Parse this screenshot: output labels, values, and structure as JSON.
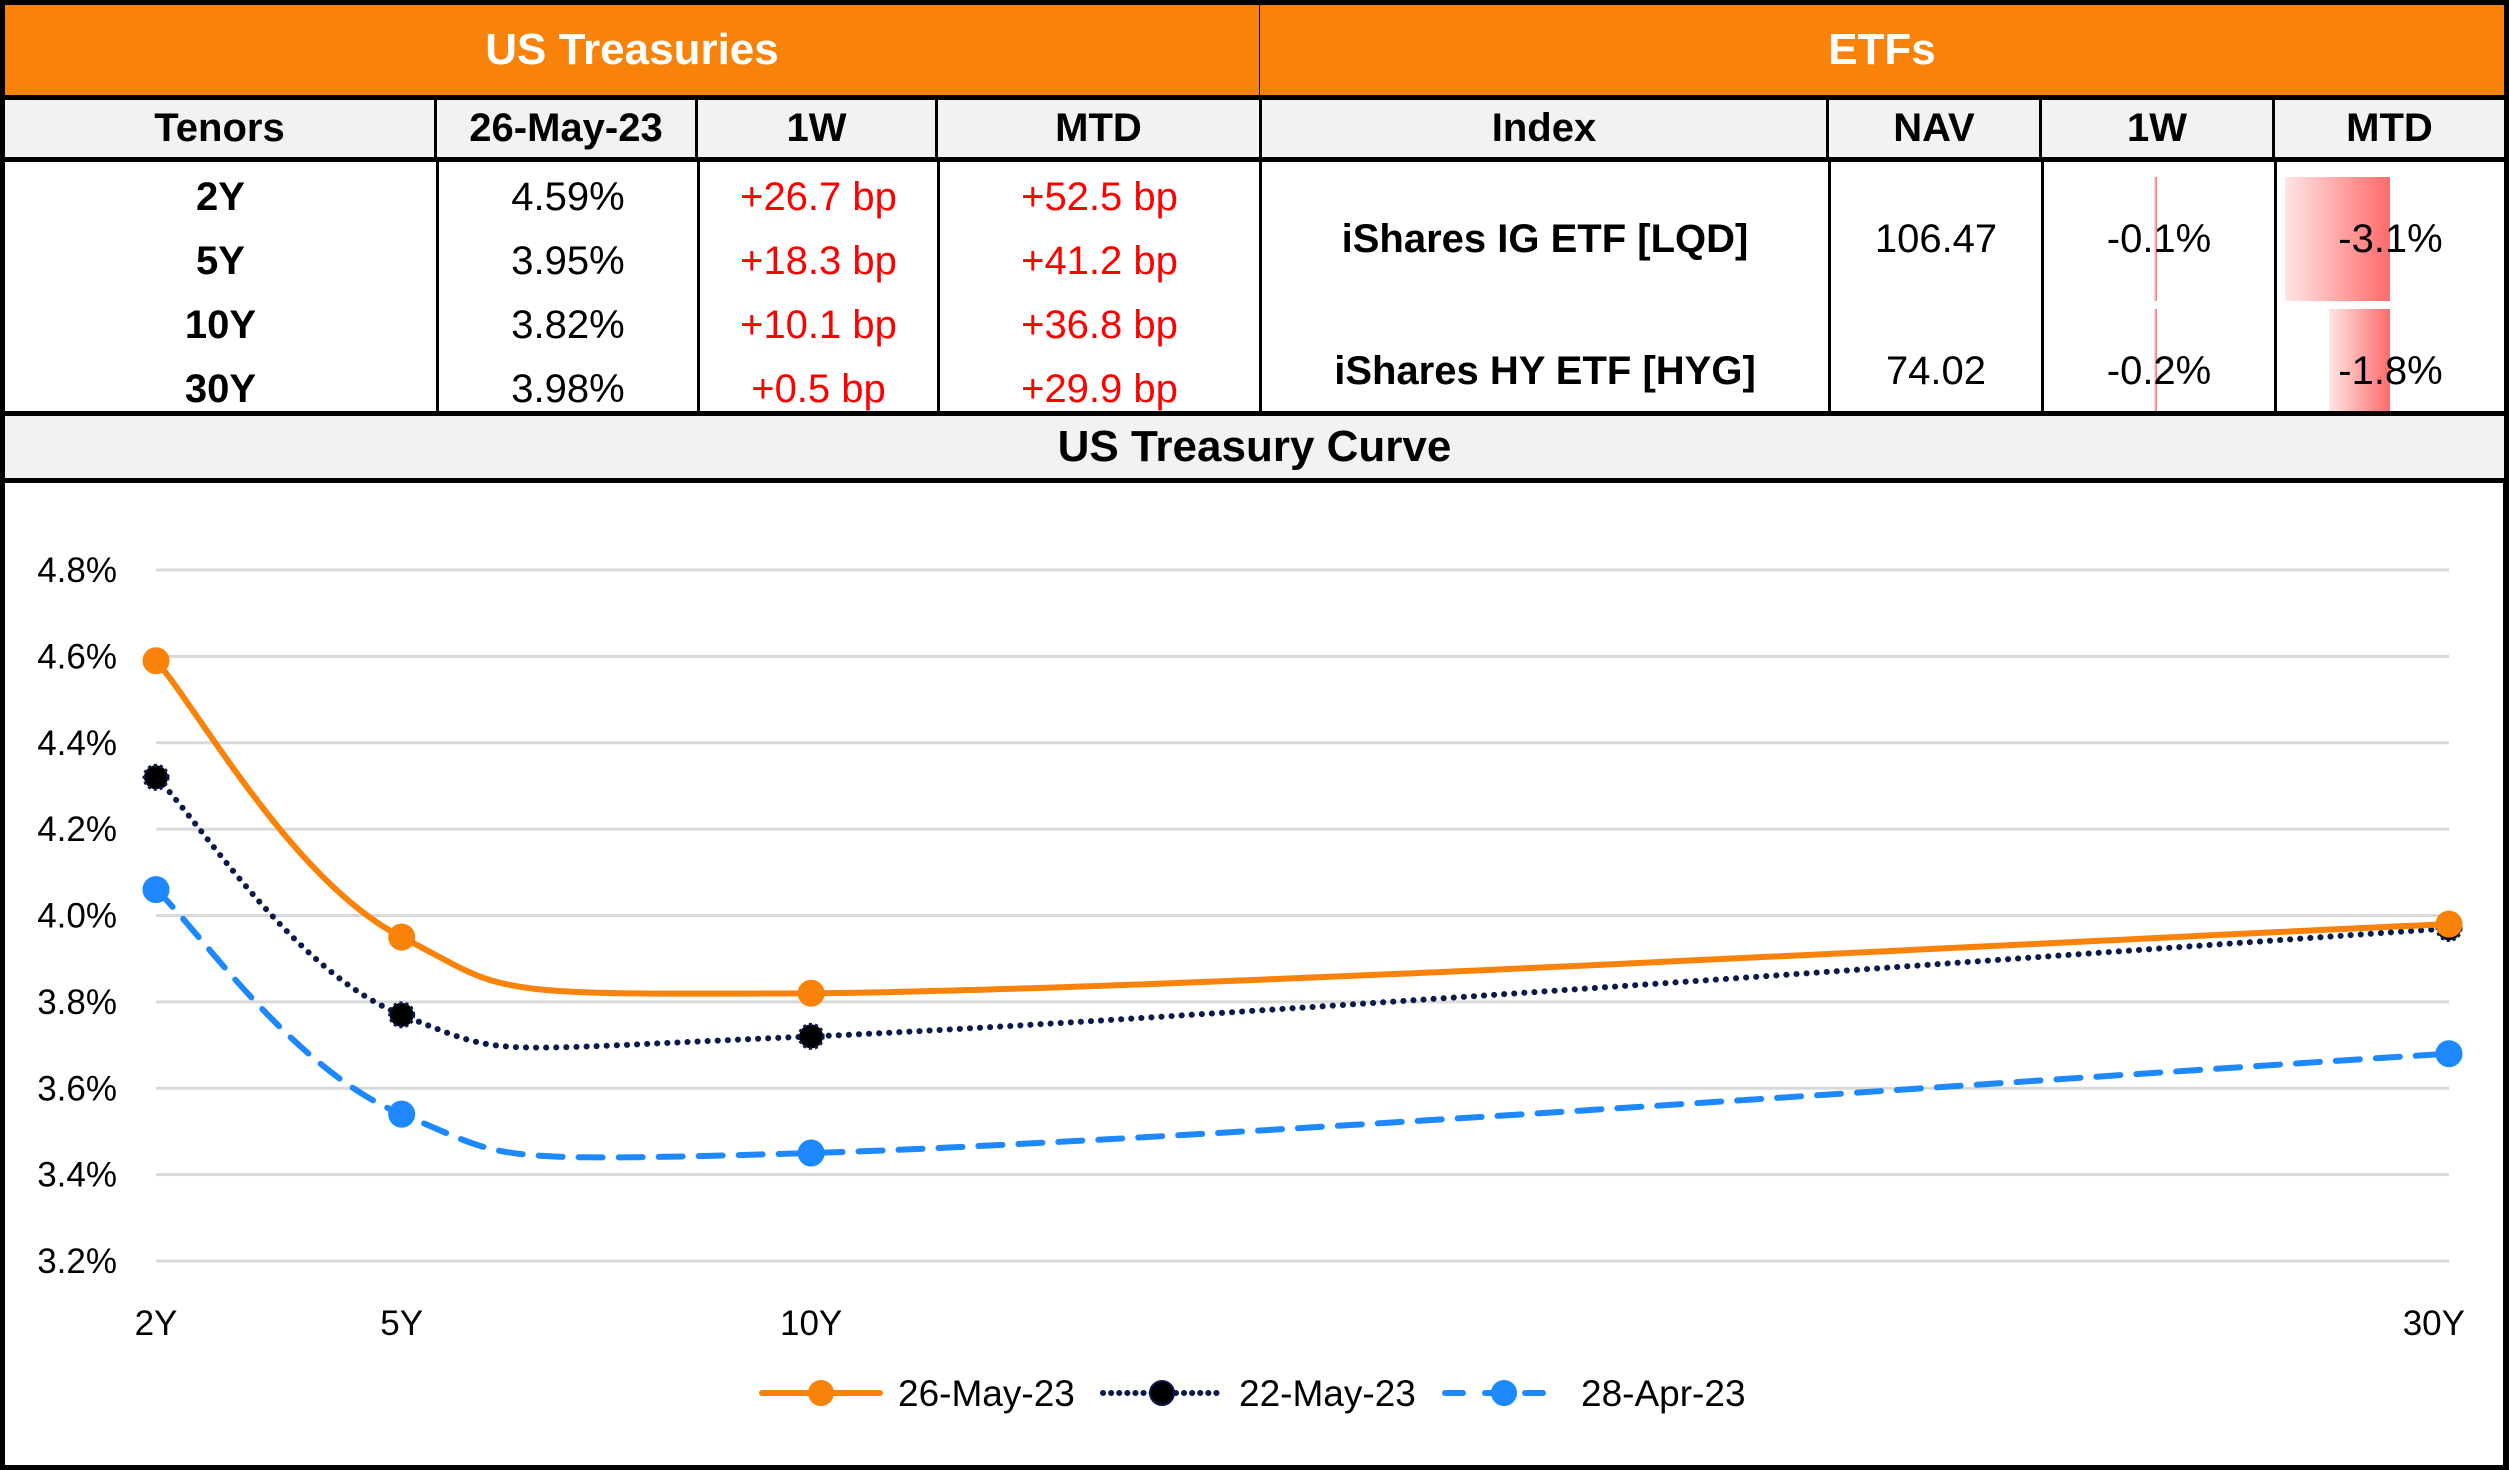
{
  "treasuries": {
    "title": "US Treasuries",
    "headers": [
      "Tenors",
      "26-May-23",
      "1W",
      "MTD"
    ],
    "rows": [
      {
        "tenor": "2Y",
        "yield": "4.59%",
        "w1": "+26.7 bp",
        "mtd": "+52.5 bp"
      },
      {
        "tenor": "5Y",
        "yield": "3.95%",
        "w1": "+18.3 bp",
        "mtd": "+41.2 bp"
      },
      {
        "tenor": "10Y",
        "yield": "3.82%",
        "w1": "+10.1 bp",
        "mtd": "+36.8 bp"
      },
      {
        "tenor": "30Y",
        "yield": "3.98%",
        "w1": "+0.5 bp",
        "mtd": "+29.9 bp"
      }
    ]
  },
  "etfs": {
    "title": "ETFs",
    "headers": [
      "Index",
      "NAV",
      "1W",
      "MTD"
    ],
    "rows": [
      {
        "index": "iShares IG ETF [LQD]",
        "nav": "106.47",
        "w1": "-0.1%",
        "mtd": "-3.1%",
        "w1_value": -0.1,
        "mtd_value": -3.1
      },
      {
        "index": "iShares HY ETF [HYG]",
        "nav": "74.02",
        "w1": "-0.2%",
        "mtd": "-1.8%",
        "w1_value": -0.2,
        "mtd_value": -1.8
      }
    ]
  },
  "colors": {
    "header_orange": "#F8820A",
    "positive_bp_red": "#FF0000",
    "databar_red": "#FF6B6B",
    "series_26may": "#F8820A",
    "series_22may": "#0B1A4A",
    "series_28apr": "#1E88FF",
    "gridline": "#D9D9D9"
  },
  "chart_data": {
    "type": "line",
    "title": "US Treasury Curve",
    "xlabel": "",
    "ylabel": "",
    "x": [
      2,
      5,
      10,
      30
    ],
    "categories": [
      "2Y",
      "5Y",
      "10Y",
      "30Y"
    ],
    "x_scale": "linear-years",
    "ylim": [
      3.2,
      4.8
    ],
    "yticks": [
      3.2,
      3.4,
      3.6,
      3.8,
      4.0,
      4.2,
      4.4,
      4.6,
      4.8
    ],
    "ytick_labels": [
      "3.2%",
      "3.4%",
      "3.6%",
      "3.8%",
      "4.0%",
      "4.2%",
      "4.4%",
      "4.6%",
      "4.8%"
    ],
    "grid": true,
    "legend_position": "bottom",
    "smooth": true,
    "series": [
      {
        "name": "26-May-23",
        "values": [
          4.59,
          3.95,
          3.82,
          3.98
        ],
        "style": "solid",
        "marker": "circle",
        "color": "#F8820A"
      },
      {
        "name": "22-May-23",
        "values": [
          4.32,
          3.77,
          3.72,
          3.97
        ],
        "style": "dotted",
        "marker": "circle",
        "color": "#0B1A4A"
      },
      {
        "name": "28-Apr-23",
        "values": [
          4.06,
          3.54,
          3.45,
          3.68
        ],
        "style": "dashed",
        "marker": "circle",
        "color": "#1E88FF"
      }
    ]
  }
}
